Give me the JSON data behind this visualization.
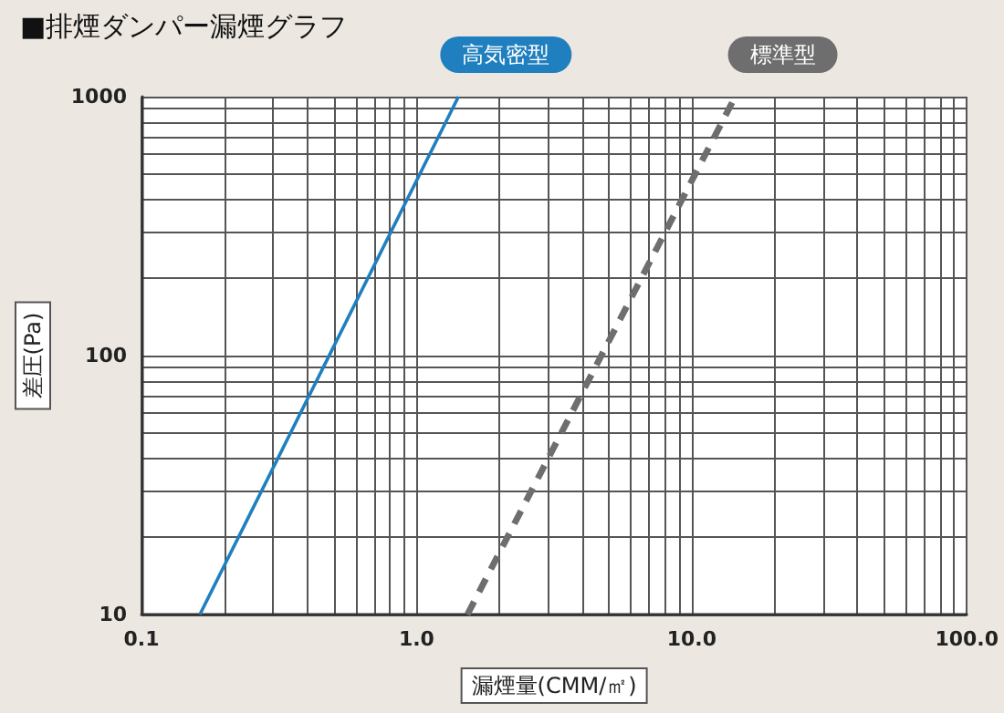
{
  "chart_data": {
    "type": "line",
    "title": "■排煙ダンパー漏煙グラフ",
    "xlabel": "漏煙量(CMM/㎡)",
    "ylabel": "差圧(Pa)",
    "log": "xy",
    "grid": true,
    "legend": false,
    "marker": "none",
    "xlim": [
      0.1,
      100
    ],
    "ylim": [
      10,
      1000
    ],
    "xticks": [
      {
        "value": 0.1,
        "label": "0.1"
      },
      {
        "value": 0.2,
        "label": null
      },
      {
        "value": 0.3,
        "label": null
      },
      {
        "value": 0.4,
        "label": null
      },
      {
        "value": 0.5,
        "label": null
      },
      {
        "value": 0.6,
        "label": null
      },
      {
        "value": 0.7,
        "label": null
      },
      {
        "value": 0.8,
        "label": null
      },
      {
        "value": 0.9,
        "label": null
      },
      {
        "value": 1,
        "label": "1.0"
      },
      {
        "value": 2,
        "label": null
      },
      {
        "value": 3,
        "label": null
      },
      {
        "value": 4,
        "label": null
      },
      {
        "value": 5,
        "label": null
      },
      {
        "value": 6,
        "label": null
      },
      {
        "value": 7,
        "label": null
      },
      {
        "value": 8,
        "label": null
      },
      {
        "value": 9,
        "label": null
      },
      {
        "value": 10,
        "label": "10.0"
      },
      {
        "value": 20,
        "label": null
      },
      {
        "value": 30,
        "label": null
      },
      {
        "value": 40,
        "label": null
      },
      {
        "value": 50,
        "label": null
      },
      {
        "value": 60,
        "label": null
      },
      {
        "value": 70,
        "label": null
      },
      {
        "value": 80,
        "label": null
      },
      {
        "value": 90,
        "label": null
      },
      {
        "value": 100,
        "label": "100.0"
      }
    ],
    "yticks": [
      10,
      {
        "value": 20,
        "label": null
      },
      {
        "value": 30,
        "label": null
      },
      {
        "value": 40,
        "label": null
      },
      {
        "value": 50,
        "label": null
      },
      {
        "value": 60,
        "label": null
      },
      {
        "value": 70,
        "label": null
      },
      {
        "value": 80,
        "label": null
      },
      {
        "value": 90,
        "label": null
      },
      100,
      {
        "value": 200,
        "label": null
      },
      {
        "value": 300,
        "label": null
      },
      {
        "value": 400,
        "label": null
      },
      {
        "value": 500,
        "label": null
      },
      {
        "value": 600,
        "label": null
      },
      {
        "value": 700,
        "label": null
      },
      {
        "value": 800,
        "label": null
      },
      {
        "value": 900,
        "label": null
      },
      1000
    ],
    "series": [
      {
        "name": "高気密型",
        "color": "#1f7fbf",
        "x": [
          0.163,
          1.42
        ],
        "values": [
          10,
          1000
        ],
        "line_style": "solid"
      },
      {
        "name": "標準型",
        "color": "#6e6e6e",
        "x": [
          1.53,
          14.4
        ],
        "values": [
          10,
          1000
        ],
        "line_style": "dashed"
      }
    ]
  }
}
